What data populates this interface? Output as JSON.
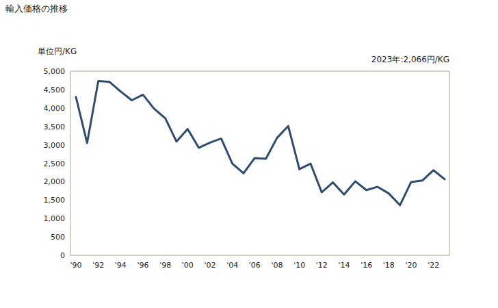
{
  "chart_data": {
    "type": "line",
    "title": "輸入価格の推移",
    "y_label": "単位円/KG",
    "annotation": "2023年:2,066円/KG",
    "categories": [
      "'90",
      null,
      "'92",
      null,
      "'94",
      null,
      "'96",
      null,
      "'98",
      null,
      "'00",
      null,
      "'02",
      null,
      "'04",
      null,
      "'06",
      null,
      "'08",
      null,
      "'10",
      null,
      "'12",
      null,
      "'14",
      null,
      "'16",
      null,
      "'18",
      null,
      "'20",
      null,
      "'22",
      null
    ],
    "values": [
      4300,
      3050,
      4730,
      4710,
      4450,
      4210,
      4360,
      3980,
      3720,
      3090,
      3430,
      2920,
      3060,
      3170,
      2490,
      2230,
      2640,
      2620,
      3190,
      3510,
      2340,
      2490,
      1710,
      1980,
      1650,
      2010,
      1770,
      1860,
      1680,
      1360,
      1990,
      2030,
      2310,
      2066
    ],
    "color": "#2f4b6e",
    "ylim": [
      0,
      5000
    ],
    "yticks": [
      0,
      500,
      {
        "value": 1000,
        "label": "1,000"
      },
      {
        "value": 1500,
        "label": "1,500"
      },
      {
        "value": 2000,
        "label": "2,000"
      },
      {
        "value": 2500,
        "label": "2,500"
      },
      {
        "value": 3000,
        "label": "3,000"
      },
      {
        "value": 3500,
        "label": "3,500"
      },
      {
        "value": 4000,
        "label": "4,000"
      },
      {
        "value": 4500,
        "label": "4,500"
      },
      {
        "value": 5000,
        "label": "5,000"
      }
    ],
    "grid": false
  }
}
